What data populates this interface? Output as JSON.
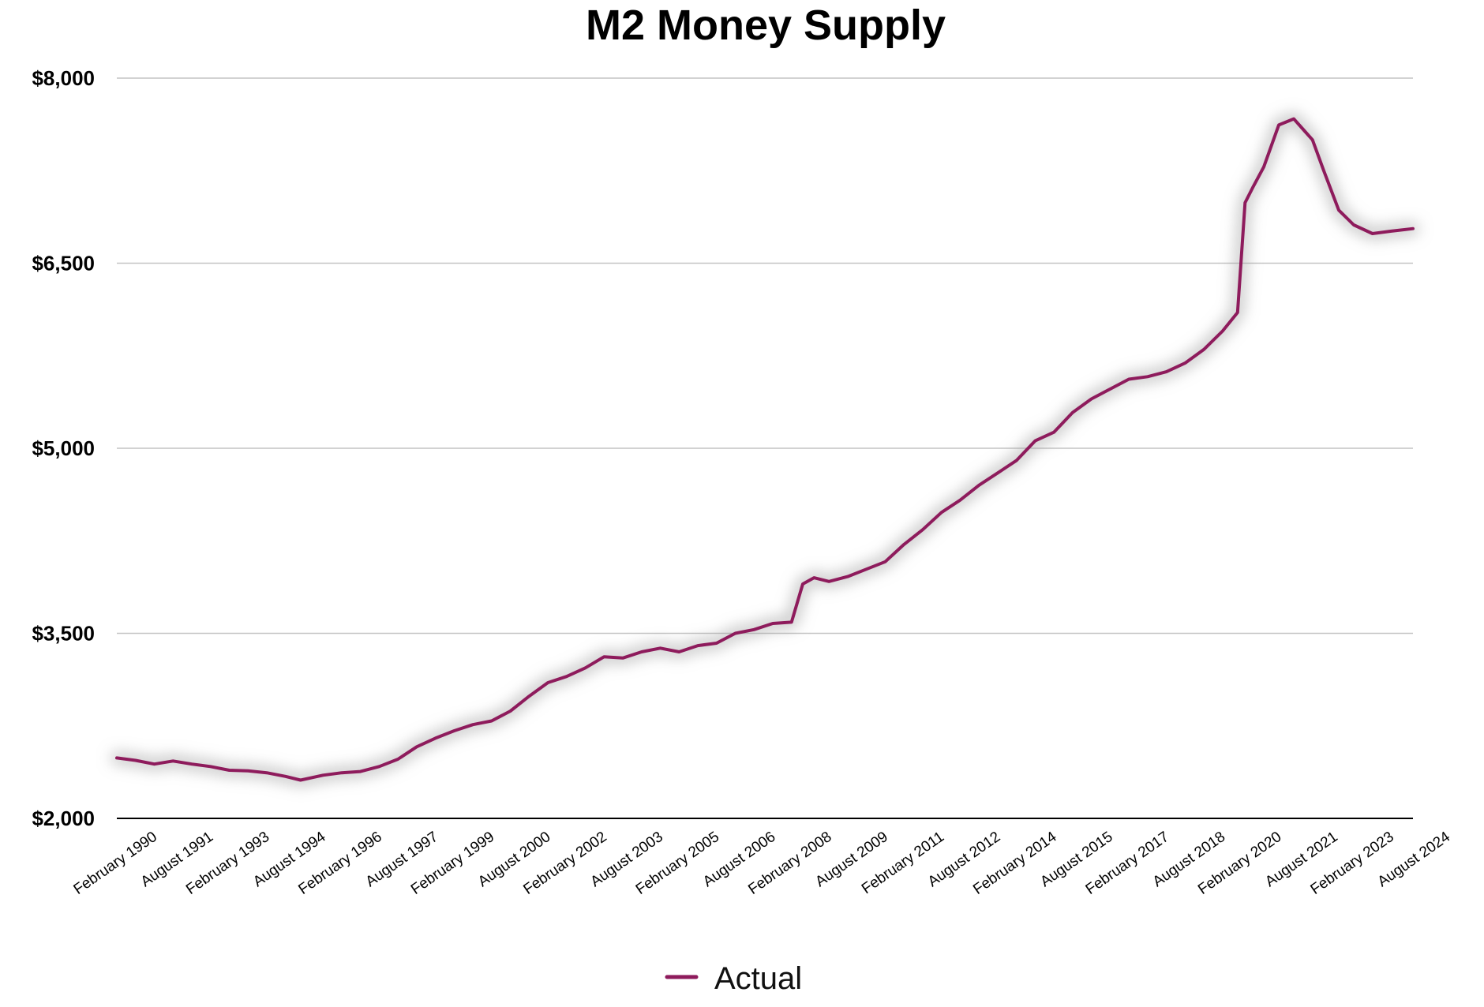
{
  "chart_data": {
    "type": "line",
    "title": "M2 Money Supply",
    "xlabel": "",
    "ylabel": "",
    "ylim": [
      2000,
      8000
    ],
    "yticks": [
      2000,
      3500,
      5000,
      6500,
      8000
    ],
    "ytick_labels": [
      "$2,000",
      "$3,500",
      "$5,000",
      "$6,500",
      "$8,000"
    ],
    "xlim": [
      1990.0,
      2024.58
    ],
    "grid": true,
    "legend_position": "bottom-center",
    "xtick_labels": [
      {
        "label": "February 1990",
        "x": 1990.0
      },
      {
        "label": "August 1991",
        "x": 1991.5
      },
      {
        "label": "February 1993",
        "x": 1993.0
      },
      {
        "label": "August 1994",
        "x": 1994.5
      },
      {
        "label": "February 1996",
        "x": 1996.0
      },
      {
        "label": "August 1997",
        "x": 1997.5
      },
      {
        "label": "February 1999",
        "x": 1999.0
      },
      {
        "label": "August 2000",
        "x": 2000.5
      },
      {
        "label": "February 2002",
        "x": 2002.0
      },
      {
        "label": "August 2003",
        "x": 2003.5
      },
      {
        "label": "February 2005",
        "x": 2005.0
      },
      {
        "label": "August 2006",
        "x": 2006.5
      },
      {
        "label": "February 2008",
        "x": 2008.0
      },
      {
        "label": "August 2009",
        "x": 2009.5
      },
      {
        "label": "February 2011",
        "x": 2011.0
      },
      {
        "label": "August 2012",
        "x": 2012.5
      },
      {
        "label": "February 2014",
        "x": 2014.0
      },
      {
        "label": "August 2015",
        "x": 2015.5
      },
      {
        "label": "February 2017",
        "x": 2017.0
      },
      {
        "label": "August 2018",
        "x": 2018.5
      },
      {
        "label": "February 2020",
        "x": 2020.0
      },
      {
        "label": "August 2021",
        "x": 2021.5
      },
      {
        "label": "February 2023",
        "x": 2023.0
      },
      {
        "label": "August 2024",
        "x": 2024.5
      }
    ],
    "series": [
      {
        "name": "Actual",
        "color": "#8e1b5c",
        "x": [
          1990.0,
          1990.5,
          1991.0,
          1991.5,
          1992.0,
          1992.5,
          1993.0,
          1993.5,
          1994.0,
          1994.5,
          1994.9,
          1995.5,
          1996.0,
          1996.5,
          1997.0,
          1997.5,
          1998.0,
          1998.5,
          1999.0,
          1999.5,
          2000.0,
          2000.5,
          2001.0,
          2001.5,
          2002.0,
          2002.5,
          2003.0,
          2003.5,
          2004.0,
          2004.5,
          2005.0,
          2005.5,
          2006.0,
          2006.5,
          2007.0,
          2007.5,
          2008.0,
          2008.3,
          2008.6,
          2009.0,
          2009.5,
          2010.0,
          2010.5,
          2011.0,
          2011.5,
          2012.0,
          2012.5,
          2013.0,
          2013.5,
          2014.0,
          2014.5,
          2015.0,
          2015.5,
          2016.0,
          2016.5,
          2017.0,
          2017.5,
          2018.0,
          2018.5,
          2019.0,
          2019.5,
          2019.9,
          2020.1,
          2020.3,
          2020.6,
          2021.0,
          2021.4,
          2021.9,
          2022.2,
          2022.6,
          2023.0,
          2023.5,
          2024.0,
          2024.58
        ],
        "values": [
          2490,
          2470,
          2440,
          2465,
          2440,
          2420,
          2390,
          2385,
          2370,
          2340,
          2310,
          2350,
          2370,
          2380,
          2420,
          2480,
          2580,
          2650,
          2710,
          2760,
          2790,
          2870,
          2990,
          3100,
          3150,
          3220,
          3310,
          3300,
          3350,
          3380,
          3350,
          3400,
          3420,
          3500,
          3530,
          3580,
          3590,
          3900,
          3950,
          3920,
          3960,
          4020,
          4080,
          4220,
          4340,
          4480,
          4580,
          4700,
          4800,
          4900,
          5060,
          5130,
          5290,
          5400,
          5480,
          5560,
          5580,
          5620,
          5690,
          5800,
          5950,
          6100,
          6990,
          7110,
          7280,
          7620,
          7670,
          7500,
          7250,
          6930,
          6810,
          6740,
          6760,
          6780
        ]
      }
    ]
  }
}
